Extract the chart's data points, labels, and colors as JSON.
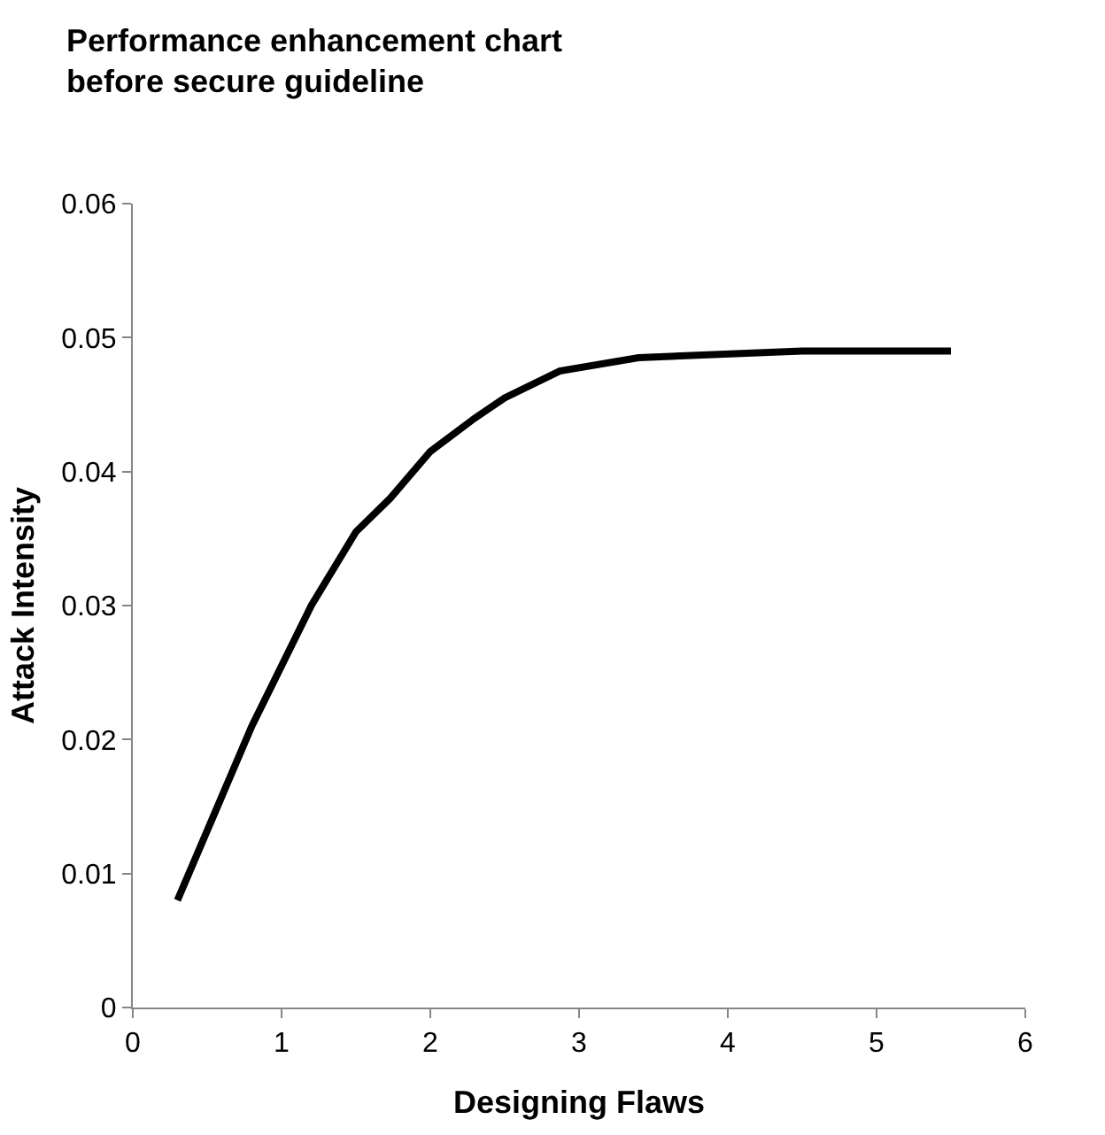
{
  "chart_data": {
    "type": "line",
    "title": "Performance enhancement chart\nbefore secure guideline",
    "xlabel": "Designing Flaws",
    "ylabel": "Attack Intensity",
    "series": [
      {
        "color": "#000000",
        "x": [
          0.3,
          0.8,
          1.2,
          1.5,
          1.73,
          2.0,
          2.3,
          2.5,
          2.87,
          3.4,
          4.5,
          5.5
        ],
        "values": [
          0.008,
          0.021,
          0.03,
          0.0355,
          0.038,
          0.0415,
          0.044,
          0.0455,
          0.0475,
          0.0485,
          0.049,
          0.049
        ]
      }
    ],
    "xlim": [
      0,
      6
    ],
    "xticks": [
      0,
      1,
      2,
      3,
      4,
      5,
      6
    ],
    "ylim": [
      0,
      0.06
    ],
    "yticks": [
      0,
      0.01,
      0.02,
      0.03,
      0.04,
      0.05,
      0.06
    ],
    "marker": "none",
    "line_style": "solid"
  }
}
